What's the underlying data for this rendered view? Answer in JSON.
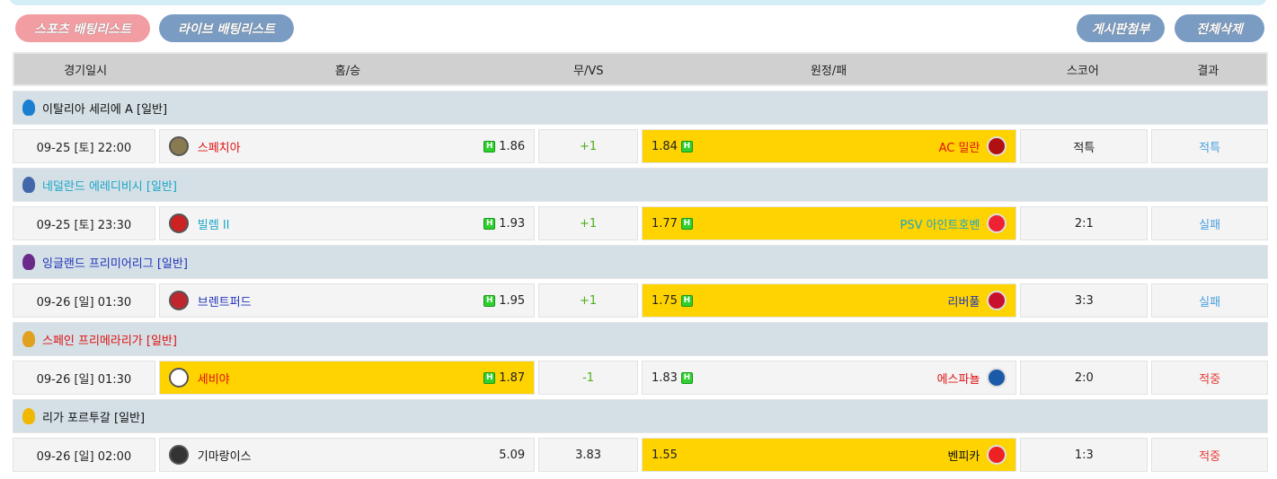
{
  "buttons": {
    "sports_list": "스포츠 배팅리스트",
    "live_list": "라이브 배팅리스트",
    "attach_board": "게시판첨부",
    "delete_all": "전체삭제"
  },
  "header": [
    "경기일시",
    "홈/승",
    "무/VS",
    "원정/패",
    "스코어",
    "결과"
  ],
  "colors": {
    "selected": "#fed300",
    "win": "#e53935",
    "lose": "#4aa0e0"
  },
  "matches": [
    {
      "league": "이탈리아 세리에 A [일반]",
      "league_color": "#111111",
      "date": "09-25 [토] 22:00",
      "home": "스페치아",
      "home_color": "#e01010",
      "home_odds": "1.86",
      "home_h": true,
      "draw": "+1",
      "away": "AC 밀란",
      "away_color": "#e01010",
      "away_odds": "1.84",
      "away_h": true,
      "selected": "away",
      "score": "적특",
      "result": "적특",
      "result_color": "#4aa0e0"
    },
    {
      "league": "네덜란드 에레디비시 [일반]",
      "league_color": "#1aa5c8",
      "date": "09-25 [토] 23:30",
      "home": "빌렘 II",
      "home_color": "#1aa5c8",
      "home_odds": "1.93",
      "home_h": true,
      "draw": "+1",
      "away": "PSV 아인트호벤",
      "away_color": "#1aa5c8",
      "away_odds": "1.77",
      "away_h": true,
      "selected": "away",
      "score": "2:1",
      "result": "실패",
      "result_color": "#4aa0e0"
    },
    {
      "league": "잉글랜드 프리미어리그 [일반]",
      "league_color": "#2233bb",
      "date": "09-26 [일] 01:30",
      "home": "브렌트퍼드",
      "home_color": "#2233bb",
      "home_odds": "1.95",
      "home_h": true,
      "draw": "+1",
      "away": "리버풀",
      "away_color": "#2233bb",
      "away_odds": "1.75",
      "away_h": true,
      "selected": "away",
      "score": "3:3",
      "result": "실패",
      "result_color": "#4aa0e0"
    },
    {
      "league": "스페인 프리메라리가 [일반]",
      "league_color": "#e01010",
      "date": "09-26 [일] 01:30",
      "home": "세비야",
      "home_color": "#e01010",
      "home_odds": "1.87",
      "home_h": true,
      "draw": "-1",
      "away": "에스파뇰",
      "away_color": "#e01010",
      "away_odds": "1.83",
      "away_h": true,
      "selected": "home",
      "score": "2:0",
      "result": "적중",
      "result_color": "#e53935"
    },
    {
      "league": "리가 포르투갈 [일반]",
      "league_color": "#111111",
      "date": "09-26 [일] 02:00",
      "home": "기마랑이스",
      "home_color": "#111111",
      "home_odds": "5.09",
      "home_h": false,
      "draw": "3.83",
      "away": "벤피카",
      "away_color": "#111111",
      "away_odds": "1.55",
      "away_h": false,
      "selected": "away",
      "score": "1:3",
      "result": "적중",
      "result_color": "#e53935"
    }
  ]
}
